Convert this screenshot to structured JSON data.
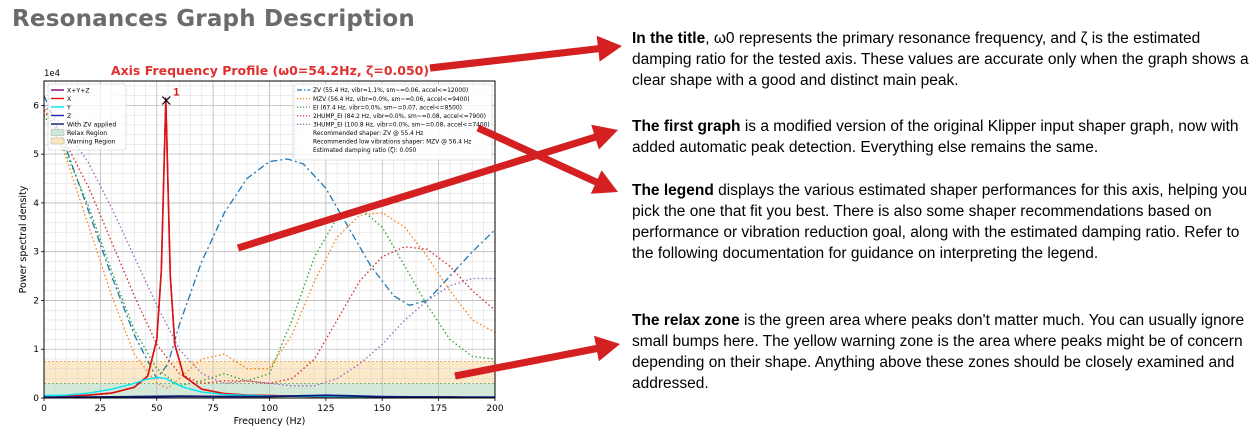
{
  "heading": "Resonances Graph Description",
  "colors": {
    "arrow": "#d42020",
    "relax": "#cfe8d4",
    "warning": "#fde7c2",
    "title": "#e03030"
  },
  "paragraphs": [
    {
      "bold": "In the title",
      "text": ", ω0 represents the primary resonance frequency, and ζ is the estimated damping ratio for the tested axis. These values are accurate only when the graph shows a clear shape with a good and distinct main peak."
    },
    {
      "bold": "The first graph",
      "text": " is a modified version of the original Klipper input shaper graph, now with added automatic peak detection. Everything else remains the same."
    },
    {
      "bold": "The legend",
      "text": " displays the various estimated shaper performances for this axis, helping you pick the one that fit you best. There is also some shaper recommendations based on performance or vibration reduction goal, along with the estimated damping ratio. Refer to the following documentation for guidance on interpreting the legend."
    },
    {
      "bold": "The relax zone",
      "text": " is the green area where peaks don't matter much. You can usually ignore small bumps here. The yellow warning zone is the area where peaks might be of concern depending on their shape. Anything above these zones should be closely examined and addressed."
    }
  ],
  "chart_data": {
    "type": "line",
    "title": "Axis Frequency Profile (ω0=54.2Hz, ζ=0.050)",
    "xlabel": "Frequency (Hz)",
    "ylabel": "Power spectral density",
    "exponent_label": "1e4",
    "xlim": [
      0,
      200
    ],
    "ylim": [
      0,
      6.5
    ],
    "xticks": [
      0,
      25,
      50,
      75,
      100,
      125,
      150,
      175,
      200
    ],
    "yticks": [
      0,
      1,
      2,
      3,
      4,
      5,
      6
    ],
    "grid": true,
    "relax_region": [
      0,
      0.3
    ],
    "warning_region": [
      0.3,
      0.75
    ],
    "peak": {
      "label": "1",
      "x": 54.2,
      "y": 6.1
    },
    "psd_series": [
      {
        "name": "X+Y+Z",
        "color": "#800080",
        "x": [
          0,
          10,
          20,
          30,
          40,
          46,
          50,
          52,
          54,
          56,
          58,
          62,
          70,
          80,
          90,
          100,
          110,
          120,
          130,
          140,
          150,
          160,
          170,
          180,
          190,
          200
        ],
        "y": [
          0,
          0.03,
          0.06,
          0.1,
          0.22,
          0.45,
          1.2,
          2.6,
          6.15,
          2.5,
          1.1,
          0.45,
          0.18,
          0.09,
          0.06,
          0.05,
          0.04,
          0.03,
          0.03,
          0.02,
          0.02,
          0.02,
          0.02,
          0.02,
          0.01,
          0.01
        ]
      },
      {
        "name": "X",
        "color": "#e01010",
        "x": [
          0,
          10,
          20,
          30,
          40,
          46,
          50,
          52,
          54,
          56,
          58,
          62,
          70,
          80,
          90,
          100,
          110,
          120,
          130,
          140,
          150,
          160,
          170,
          180,
          190,
          200
        ],
        "y": [
          0,
          0.03,
          0.06,
          0.1,
          0.22,
          0.45,
          1.2,
          2.6,
          6.1,
          2.5,
          1.1,
          0.45,
          0.18,
          0.09,
          0.06,
          0.05,
          0.04,
          0.03,
          0.03,
          0.02,
          0.02,
          0.02,
          0.02,
          0.02,
          0.01,
          0.01
        ]
      },
      {
        "name": "Y",
        "color": "#00e5ee",
        "x": [
          0,
          10,
          20,
          30,
          40,
          45,
          50,
          54,
          58,
          62,
          70,
          80,
          100,
          130,
          160,
          200
        ],
        "y": [
          0.05,
          0.06,
          0.1,
          0.18,
          0.3,
          0.38,
          0.42,
          0.4,
          0.3,
          0.22,
          0.12,
          0.07,
          0.04,
          0.03,
          0.02,
          0.01
        ]
      },
      {
        "name": "Z",
        "color": "#1f1fbf",
        "x": [
          0,
          20,
          40,
          60,
          80,
          100,
          115,
          125,
          135,
          150,
          175,
          200
        ],
        "y": [
          0.02,
          0.02,
          0.02,
          0.03,
          0.03,
          0.03,
          0.05,
          0.06,
          0.05,
          0.03,
          0.02,
          0.02
        ]
      },
      {
        "name": "With ZV applied",
        "color": "#0a1a6a",
        "x": [
          0,
          20,
          40,
          60,
          80,
          100,
          115,
          125,
          135,
          150,
          175,
          200
        ],
        "y": [
          0.01,
          0.02,
          0.03,
          0.04,
          0.03,
          0.03,
          0.04,
          0.05,
          0.04,
          0.02,
          0.02,
          0.01
        ]
      }
    ],
    "shaper_series": [
      {
        "name": "ZV (55.4 Hz, vibr=1.1%, sm~=0.06, accel<=12000)",
        "color": "#1f77b4",
        "style": "dashdot",
        "x": [
          0,
          10,
          20,
          30,
          40,
          50,
          55,
          60,
          70,
          80,
          90,
          100,
          108,
          115,
          125,
          135,
          145,
          155,
          162,
          170,
          180,
          190,
          200
        ],
        "y": [
          6.2,
          5.1,
          3.8,
          2.5,
          1.3,
          0.4,
          0.7,
          1.5,
          2.8,
          3.8,
          4.5,
          4.85,
          4.9,
          4.8,
          4.3,
          3.5,
          2.7,
          2.1,
          1.9,
          2.0,
          2.5,
          3.0,
          3.45
        ]
      },
      {
        "name": "MZV (56.4 Hz, vibr=0.0%, sm~=0.06, accel<=9400)",
        "color": "#ff7f0e",
        "style": "dotted",
        "x": [
          0,
          10,
          20,
          30,
          40,
          50,
          55,
          60,
          70,
          80,
          90,
          100,
          110,
          120,
          130,
          140,
          150,
          160,
          170,
          180,
          190,
          200
        ],
        "y": [
          6.0,
          4.9,
          3.5,
          2.1,
          0.9,
          0.3,
          0.2,
          0.4,
          0.8,
          0.9,
          0.6,
          0.6,
          1.3,
          2.4,
          3.3,
          3.75,
          3.8,
          3.5,
          2.9,
          2.2,
          1.6,
          1.35
        ]
      },
      {
        "name": "EI (67.4 Hz, vibr=0.0%, sm~=0.07, accel<=8500)",
        "color": "#2ca02c",
        "style": "dotted",
        "x": [
          0,
          10,
          20,
          30,
          40,
          50,
          60,
          70,
          80,
          90,
          100,
          110,
          120,
          130,
          140,
          150,
          160,
          170,
          180,
          190,
          200
        ],
        "y": [
          5.8,
          5.0,
          3.9,
          2.6,
          1.4,
          0.6,
          0.25,
          0.35,
          0.5,
          0.35,
          0.5,
          1.6,
          2.9,
          3.7,
          3.9,
          3.5,
          2.7,
          1.9,
          1.2,
          0.85,
          0.8
        ]
      },
      {
        "name": "2HUMP_EI (84.2 Hz, vibr=0.0%, sm~=0.08, accel<=7900)",
        "color": "#d62728",
        "style": "dotted",
        "x": [
          0,
          10,
          20,
          30,
          40,
          50,
          60,
          70,
          80,
          90,
          100,
          110,
          120,
          130,
          140,
          150,
          160,
          170,
          180,
          190,
          200
        ],
        "y": [
          5.9,
          5.2,
          4.3,
          3.2,
          2.1,
          1.1,
          0.5,
          0.3,
          0.35,
          0.35,
          0.3,
          0.4,
          0.8,
          1.6,
          2.4,
          2.9,
          3.1,
          3.05,
          2.7,
          2.2,
          1.8
        ]
      },
      {
        "name": "3HUMP_EI (100.8 Hz, vibr=0.0%, sm~=0.08, accel<=7400)",
        "color": "#9467bd",
        "style": "dotted",
        "x": [
          0,
          10,
          20,
          30,
          40,
          50,
          60,
          70,
          80,
          90,
          100,
          110,
          120,
          130,
          140,
          150,
          160,
          170,
          180,
          190,
          200
        ],
        "y": [
          6.0,
          5.5,
          4.8,
          3.9,
          2.9,
          1.9,
          1.0,
          0.5,
          0.3,
          0.35,
          0.3,
          0.25,
          0.25,
          0.4,
          0.7,
          1.1,
          1.6,
          2.0,
          2.3,
          2.45,
          2.45
        ]
      }
    ],
    "legend_left": [
      {
        "label": "X+Y+Z",
        "color": "#800080",
        "kind": "line"
      },
      {
        "label": "X",
        "color": "#e01010",
        "kind": "line"
      },
      {
        "label": "Y",
        "color": "#00e5ee",
        "kind": "line"
      },
      {
        "label": "Z",
        "color": "#1f1fbf",
        "kind": "line"
      },
      {
        "label": "With ZV applied",
        "color": "#0a1a6a",
        "kind": "line"
      },
      {
        "label": "Relax Region",
        "color": "#cfe8d4",
        "kind": "patch"
      },
      {
        "label": "Warning Region",
        "color": "#fde7c2",
        "kind": "patch"
      }
    ],
    "legend_right_notes": [
      "Recommended shaper: ZV @ 55.4 Hz",
      "Recommended low vibrations shaper: MZV @ 56.4 Hz",
      "Estimated damping ratio (ζ): 0.050"
    ]
  }
}
